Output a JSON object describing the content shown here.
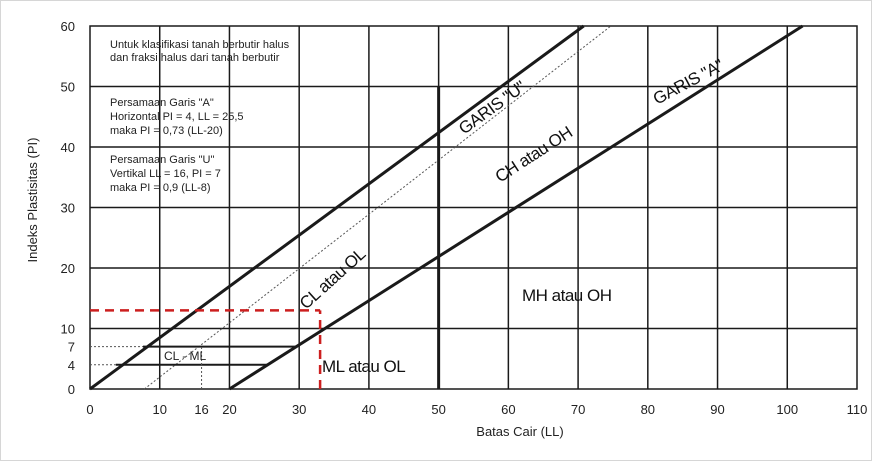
{
  "chart_data": {
    "type": "line",
    "title": "",
    "xlabel": "Batas Cair (LL)",
    "ylabel": "Indeks Plastisitas (PI)",
    "xlim": [
      0,
      110
    ],
    "ylim": [
      0,
      60
    ],
    "x_ticks": [
      "0",
      "10",
      "16",
      "20",
      "30",
      "40",
      "50",
      "60",
      "70",
      "80",
      "90",
      "100",
      "110"
    ],
    "y_ticks": [
      "0",
      "4",
      "7",
      "10",
      "20",
      "30",
      "40",
      "50",
      "60"
    ],
    "grid": true,
    "series": [
      {
        "name": "GARIS \"U\"",
        "x": [
          7.8,
          74.7
        ],
        "y": [
          0,
          60
        ],
        "style": "dotted"
      },
      {
        "name": "GARIS \"A\"",
        "x": [
          20,
          102.2
        ],
        "y": [
          0,
          60
        ],
        "style": "solid"
      }
    ],
    "reference_lines": [
      {
        "x": [
          0,
          70.8
        ],
        "y": [
          0,
          60
        ],
        "style": "solid"
      },
      {
        "x": [
          50,
          50
        ],
        "y": [
          0,
          50
        ],
        "style": "solid"
      },
      {
        "x": [
          7.6,
          29.6
        ],
        "y": [
          7,
          7
        ],
        "style": "solid"
      },
      {
        "x": [
          3.7,
          25.5
        ],
        "y": [
          4,
          4
        ],
        "style": "solid"
      },
      {
        "x": [
          0,
          7.6
        ],
        "y": [
          7,
          7
        ],
        "style": "dotted"
      },
      {
        "x": [
          0,
          3.7
        ],
        "y": [
          4,
          4
        ],
        "style": "dotted"
      },
      {
        "x": [
          16,
          16
        ],
        "y": [
          0,
          7
        ],
        "style": "dotted"
      },
      {
        "x": [
          0,
          33
        ],
        "y": [
          13,
          13
        ],
        "style": "red-dashed"
      },
      {
        "x": [
          33,
          33
        ],
        "y": [
          0,
          13
        ],
        "style": "red-dashed"
      }
    ],
    "annotations": {
      "note_fine": [
        "Untuk klasifikasi tanah berbutir halus",
        "dan fraksi halus dari tanah berbutir"
      ],
      "note_a": [
        "Persamaan Garis \"A\"",
        "Horizontal PI = 4, LL = 25,5",
        "maka PI = 0,73 (LL-20)"
      ],
      "note_u": [
        "Persamaan Garis \"U\"",
        "Vertikal LL = 16, PI = 7",
        "maka PI = 0,9 (LL-8)"
      ],
      "garis_u": "GARIS \"U\"",
      "garis_a": "GARIS \"A\"",
      "ch_oh": "CH atau OH",
      "cl_ol": "CL atau OL",
      "mh_oh": "MH atau OH",
      "ml_ol": "ML atau OL",
      "cl_ml": "CL - ML"
    }
  },
  "colors": {
    "line": "#1a1a1a",
    "grid": "#1a1a1a",
    "marker": "#cc1f1f"
  }
}
